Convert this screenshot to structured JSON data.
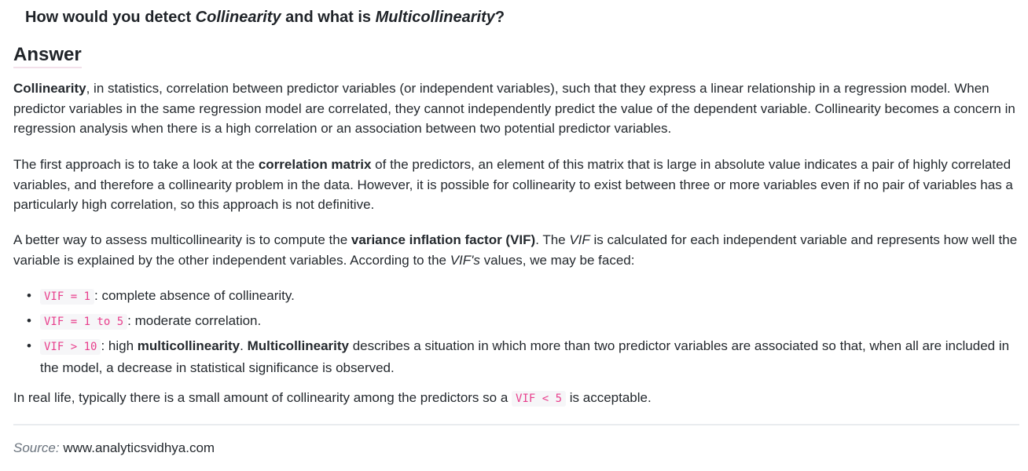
{
  "question": {
    "part1": "How would you detect ",
    "term1": "Collinearity",
    "part2": " and what is ",
    "term2": "Multicollinearity",
    "part3": "?"
  },
  "answer_heading": "Answer",
  "paragraph1": {
    "bold_lead": "Collinearity",
    "text": ", in statistics, correlation between predictor variables (or independent variables), such that they express a linear relationship in a regression model. When predictor variables in the same regression model are correlated, they cannot independently predict the value of the dependent variable. Collinearity becomes a concern in regression analysis when there is a high correlation or an association between two potential predictor variables."
  },
  "paragraph2": {
    "before": "The first approach is to take a look at the ",
    "bold": "correlation matrix",
    "after": " of the predictors, an element of this matrix that is large in absolute value indicates a pair of highly correlated variables, and therefore a collinearity problem in the data. However, it is possible for collinearity to exist between three or more variables even if no pair of variables has a particularly high correlation, so this approach is not definitive."
  },
  "paragraph3": {
    "before": "A better way to assess multicollinearity is to compute the ",
    "bold": "variance inflation factor (VIF)",
    "mid1": ". The ",
    "italic1": "VIF",
    "mid2": " is calculated for each independent variable and represents how well the variable is explained by the other independent variables. According to the ",
    "italic2": "VIF's",
    "after": " values, we may be faced:"
  },
  "list": [
    {
      "code": "VIF = 1",
      "text": ": complete absence of collinearity."
    },
    {
      "code": "VIF = 1 to 5",
      "text": ": moderate correlation."
    },
    {
      "code": "VIF > 10",
      "text_before": ": high ",
      "bold1": "multicollinearity",
      "text_mid": ". ",
      "bold2": "Multicollinearity",
      "text_after": " describes a situation in which more than two predictor variables are associated so that, when all are included in the model, a decrease in statistical significance is observed."
    }
  ],
  "bullet_glyph": "•",
  "paragraph4": {
    "before": "In real life, typically there is a small amount of collinearity among the predictors so a ",
    "code": "VIF < 5",
    "after": " is acceptable."
  },
  "source": {
    "label": "Source:",
    "value": "www.analyticsvidhya.com"
  },
  "colors": {
    "text": "#24292e",
    "code_text": "#e83e8c",
    "code_bg": "#f6f6f8",
    "rule": "#e9ecef"
  }
}
